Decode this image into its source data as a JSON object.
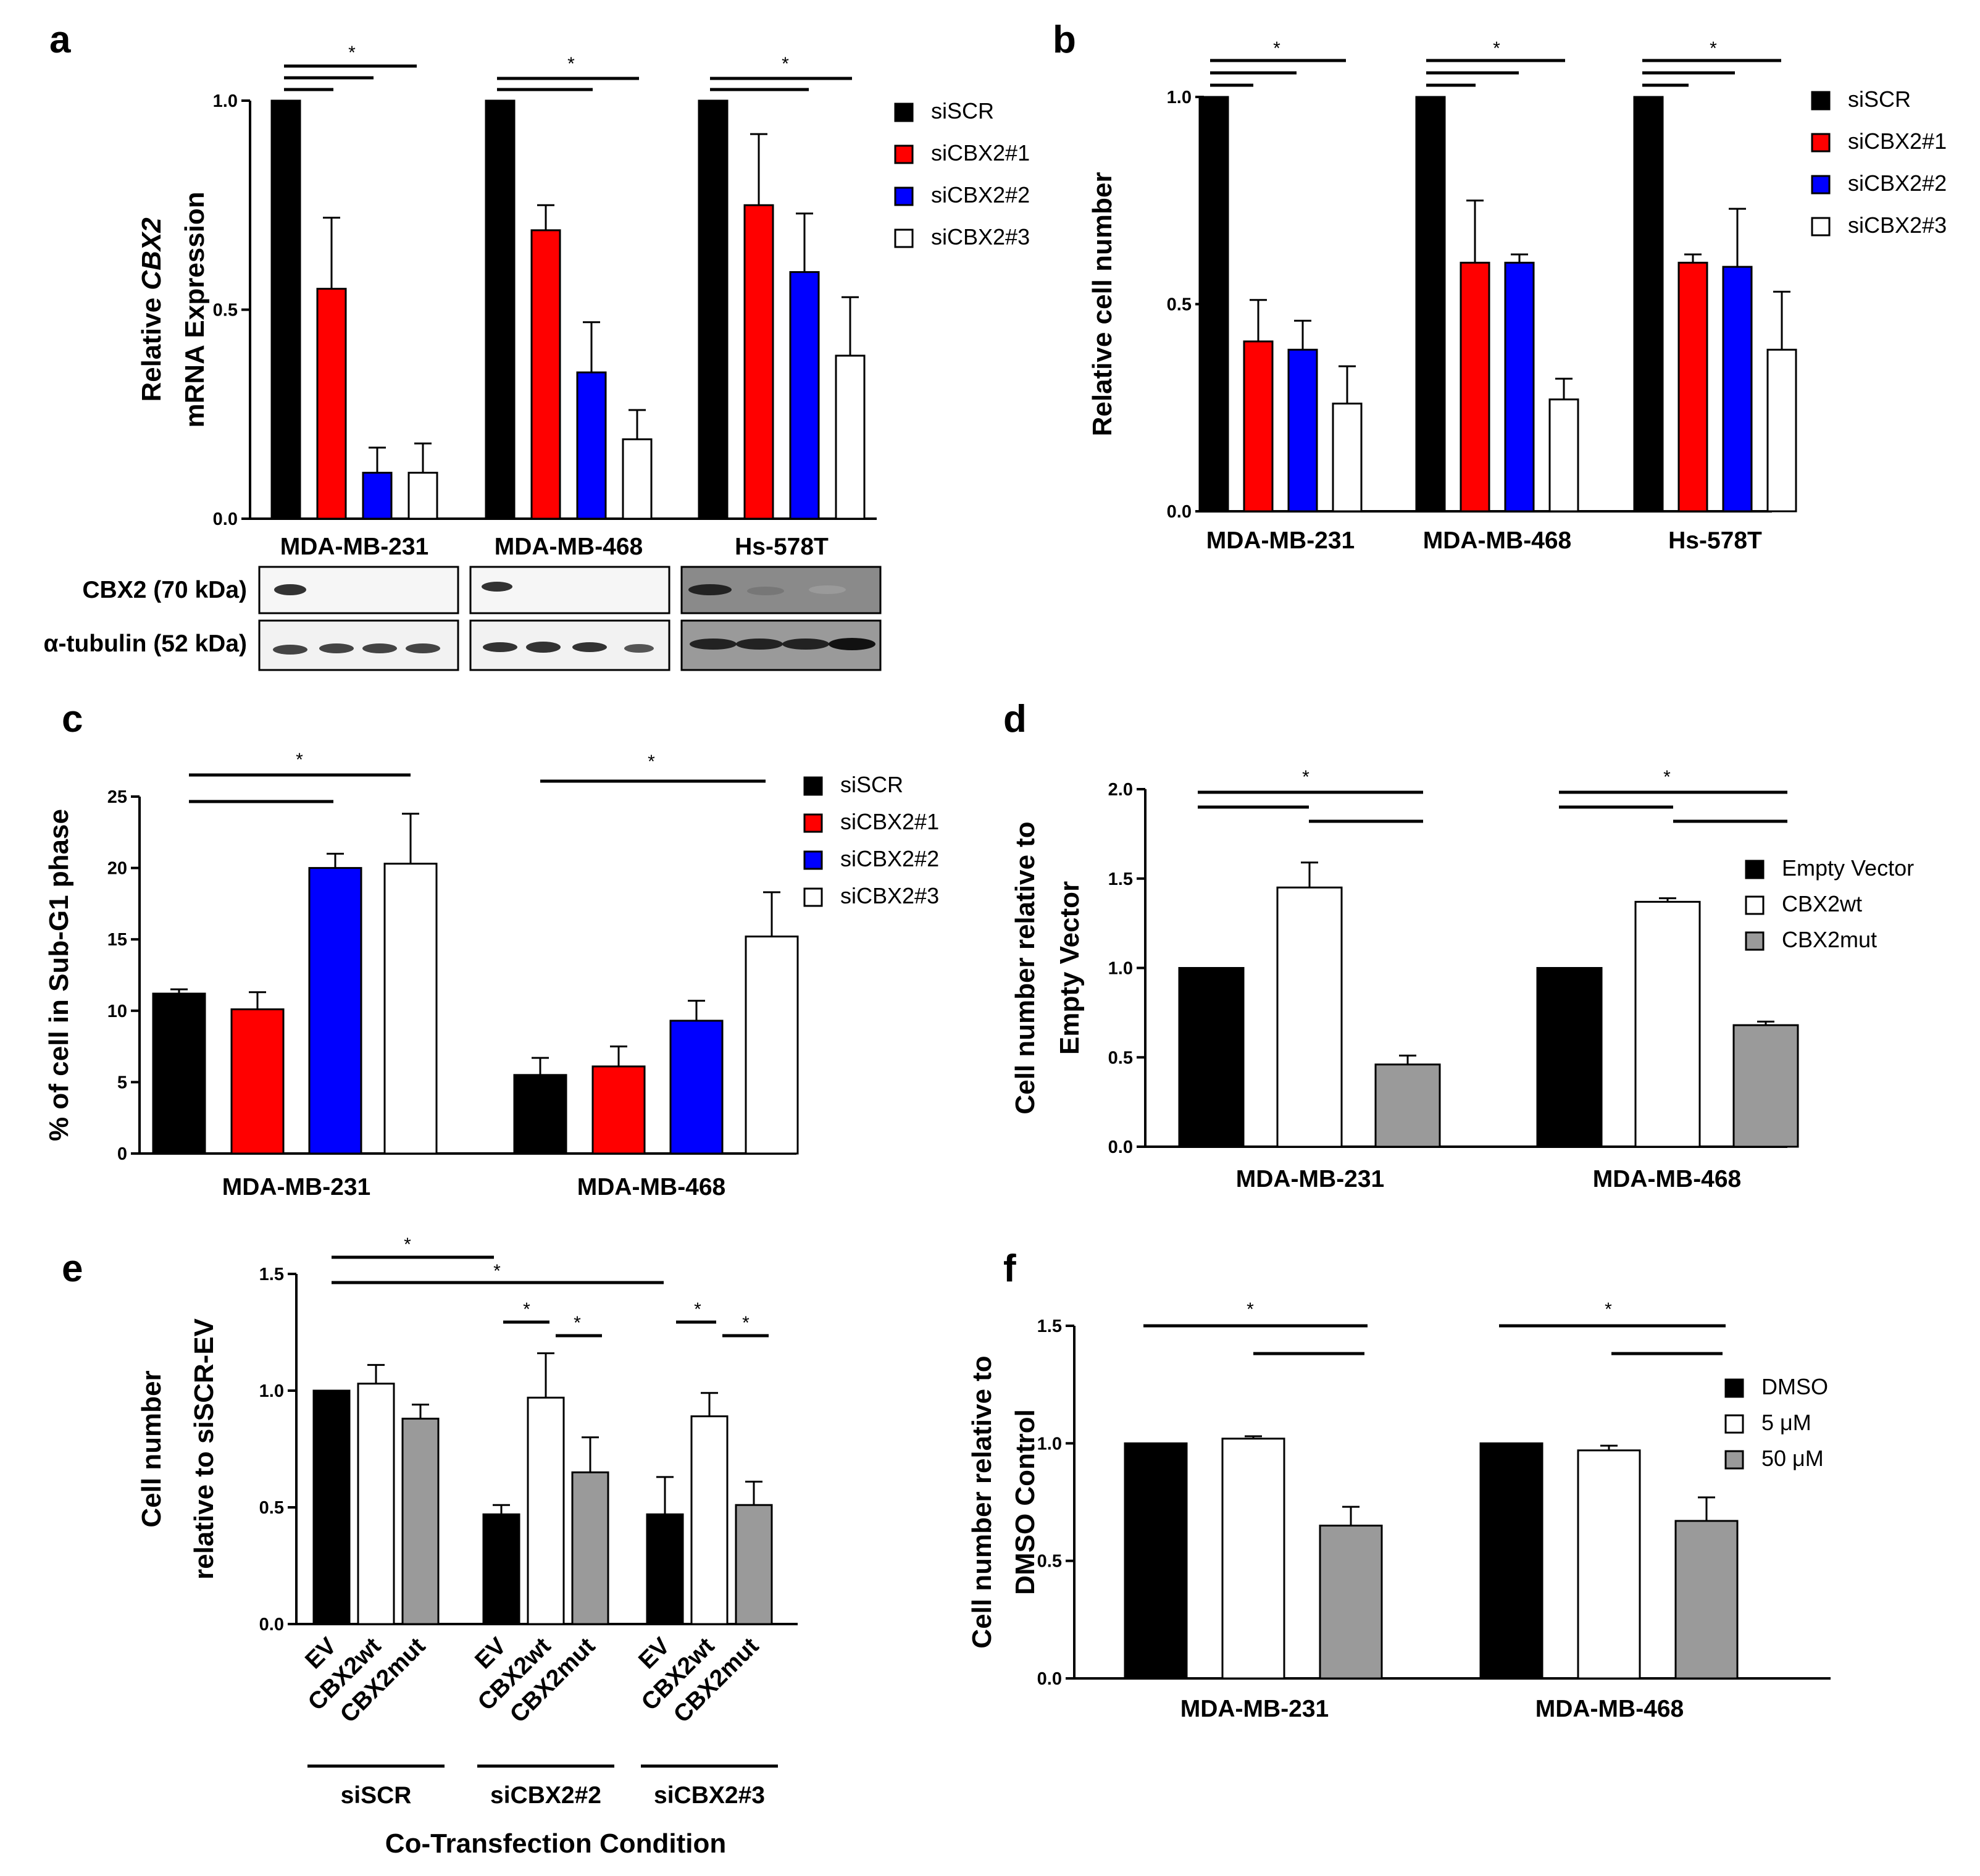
{
  "panels": {
    "a": "a",
    "b": "b",
    "c": "c",
    "d": "d",
    "e": "e",
    "f": "f"
  },
  "colors": {
    "black": "#000000",
    "red": "#ff0000",
    "blue": "#0000ff",
    "white": "#ffffff",
    "grey": "#9a9a9a"
  },
  "western_blot": {
    "row_labels": [
      "CBX2 (70 kDa)",
      "α-tubulin (52 kDa)"
    ]
  },
  "chart_data": [
    {
      "panel": "a",
      "type": "bar",
      "ylabel_lines": [
        "Relative CBX2",
        "mRNA Expression"
      ],
      "ylabel_italic_word": "CBX2",
      "ylim": [
        0,
        1.0
      ],
      "yticks": [
        "0.0",
        "0.5",
        "1.0"
      ],
      "categories": [
        "MDA-MB-231",
        "MDA-MB-468",
        "Hs-578T"
      ],
      "series": [
        {
          "name": "siSCR",
          "color": "#000000",
          "values": [
            1.0,
            1.0,
            1.0
          ],
          "errors": [
            0,
            0,
            0
          ]
        },
        {
          "name": "siCBX2#1",
          "color": "#ff0000",
          "values": [
            0.55,
            0.69,
            0.75
          ],
          "errors": [
            0.17,
            0.06,
            0.17
          ]
        },
        {
          "name": "siCBX2#2",
          "color": "#0000ff",
          "values": [
            0.11,
            0.35,
            0.59
          ],
          "errors": [
            0.06,
            0.12,
            0.14
          ]
        },
        {
          "name": "siCBX2#3",
          "color": "#ffffff",
          "values": [
            0.11,
            0.19,
            0.39
          ],
          "errors": [
            0.07,
            0.07,
            0.14
          ]
        }
      ],
      "legend": "right",
      "significance": "*"
    },
    {
      "panel": "b",
      "type": "bar",
      "ylabel_lines": [
        "Relative cell number"
      ],
      "ylim": [
        0,
        1.0
      ],
      "yticks": [
        "0.0",
        "0.5",
        "1.0"
      ],
      "categories": [
        "MDA-MB-231",
        "MDA-MB-468",
        "Hs-578T"
      ],
      "series": [
        {
          "name": "siSCR",
          "color": "#000000",
          "values": [
            1.0,
            1.0,
            1.0
          ],
          "errors": [
            0,
            0,
            0
          ]
        },
        {
          "name": "siCBX2#1",
          "color": "#ff0000",
          "values": [
            0.41,
            0.6,
            0.6
          ],
          "errors": [
            0.1,
            0.15,
            0.02
          ]
        },
        {
          "name": "siCBX2#2",
          "color": "#0000ff",
          "values": [
            0.39,
            0.6,
            0.59
          ],
          "errors": [
            0.07,
            0.02,
            0.14
          ]
        },
        {
          "name": "siCBX2#3",
          "color": "#ffffff",
          "values": [
            0.26,
            0.27,
            0.39
          ],
          "errors": [
            0.09,
            0.05,
            0.14
          ]
        }
      ],
      "legend": "right",
      "significance": "*"
    },
    {
      "panel": "c",
      "type": "bar",
      "ylabel_lines": [
        "% of cell in Sub-G1 phase"
      ],
      "ylim": [
        0,
        25
      ],
      "yticks": [
        "0",
        "5",
        "10",
        "15",
        "20",
        "25"
      ],
      "categories": [
        "MDA-MB-231",
        "MDA-MB-468"
      ],
      "series": [
        {
          "name": "siSCR",
          "color": "#000000",
          "values": [
            11.2,
            5.5
          ],
          "errors": [
            0.3,
            1.2
          ]
        },
        {
          "name": "siCBX2#1",
          "color": "#ff0000",
          "values": [
            10.1,
            6.1
          ],
          "errors": [
            1.2,
            1.4
          ]
        },
        {
          "name": "siCBX2#2",
          "color": "#0000ff",
          "values": [
            20.0,
            9.3
          ],
          "errors": [
            1.0,
            1.4
          ]
        },
        {
          "name": "siCBX2#3",
          "color": "#ffffff",
          "values": [
            20.3,
            15.2
          ],
          "errors": [
            3.5,
            3.1
          ]
        }
      ],
      "legend": "right",
      "significance": "*"
    },
    {
      "panel": "d",
      "type": "bar",
      "ylabel_lines": [
        "Cell number relative to",
        "Empty Vector"
      ],
      "ylim": [
        0,
        2.0
      ],
      "yticks": [
        "0.0",
        "0.5",
        "1.0",
        "1.5",
        "2.0"
      ],
      "categories": [
        "MDA-MB-231",
        "MDA-MB-468"
      ],
      "series": [
        {
          "name": "Empty Vector",
          "color": "#000000",
          "values": [
            1.0,
            1.0
          ],
          "errors": [
            0,
            0
          ]
        },
        {
          "name": "CBX2wt",
          "color": "#ffffff",
          "values": [
            1.45,
            1.37
          ],
          "errors": [
            0.14,
            0.02
          ]
        },
        {
          "name": "CBX2mut",
          "color": "#9a9a9a",
          "values": [
            0.46,
            0.68
          ],
          "errors": [
            0.05,
            0.02
          ]
        }
      ],
      "legend": "right",
      "significance": "*"
    },
    {
      "panel": "e",
      "type": "bar",
      "ylabel_lines": [
        "Cell number",
        "relative to siSCR-EV"
      ],
      "xlabel": "Co-Transfection Condition",
      "ylim": [
        0,
        1.5
      ],
      "yticks": [
        "0.0",
        "0.5",
        "1.0",
        "1.5"
      ],
      "categories": [
        "EV",
        "CBX2wt",
        "CBX2mut",
        "EV",
        "CBX2wt",
        "CBX2mut",
        "EV",
        "CBX2wt",
        "CBX2mut"
      ],
      "groups": [
        "siSCR",
        "siCBX2#2",
        "siCBX2#3"
      ],
      "values": [
        1.0,
        1.03,
        0.88,
        0.47,
        0.97,
        0.65,
        0.47,
        0.89,
        0.51
      ],
      "errors": [
        0,
        0.08,
        0.06,
        0.04,
        0.19,
        0.15,
        0.16,
        0.1,
        0.1
      ],
      "bar_colors": [
        "#000000",
        "#ffffff",
        "#9a9a9a",
        "#000000",
        "#ffffff",
        "#9a9a9a",
        "#000000",
        "#ffffff",
        "#9a9a9a"
      ],
      "significance": "*"
    },
    {
      "panel": "f",
      "type": "bar",
      "ylabel_lines": [
        "Cell number relative to",
        "DMSO Control"
      ],
      "ylim": [
        0,
        1.5
      ],
      "yticks": [
        "0.0",
        "0.5",
        "1.0",
        "1.5"
      ],
      "categories": [
        "MDA-MB-231",
        "MDA-MB-468"
      ],
      "series": [
        {
          "name": "DMSO",
          "color": "#000000",
          "values": [
            1.0,
            1.0
          ],
          "errors": [
            0,
            0
          ]
        },
        {
          "name": "5 μM",
          "color": "#ffffff",
          "values": [
            1.02,
            0.97
          ],
          "errors": [
            0.01,
            0.02
          ]
        },
        {
          "name": "50 μM",
          "color": "#9a9a9a",
          "values": [
            0.65,
            0.67
          ],
          "errors": [
            0.08,
            0.1
          ]
        }
      ],
      "legend": "right",
      "significance": "*"
    }
  ]
}
